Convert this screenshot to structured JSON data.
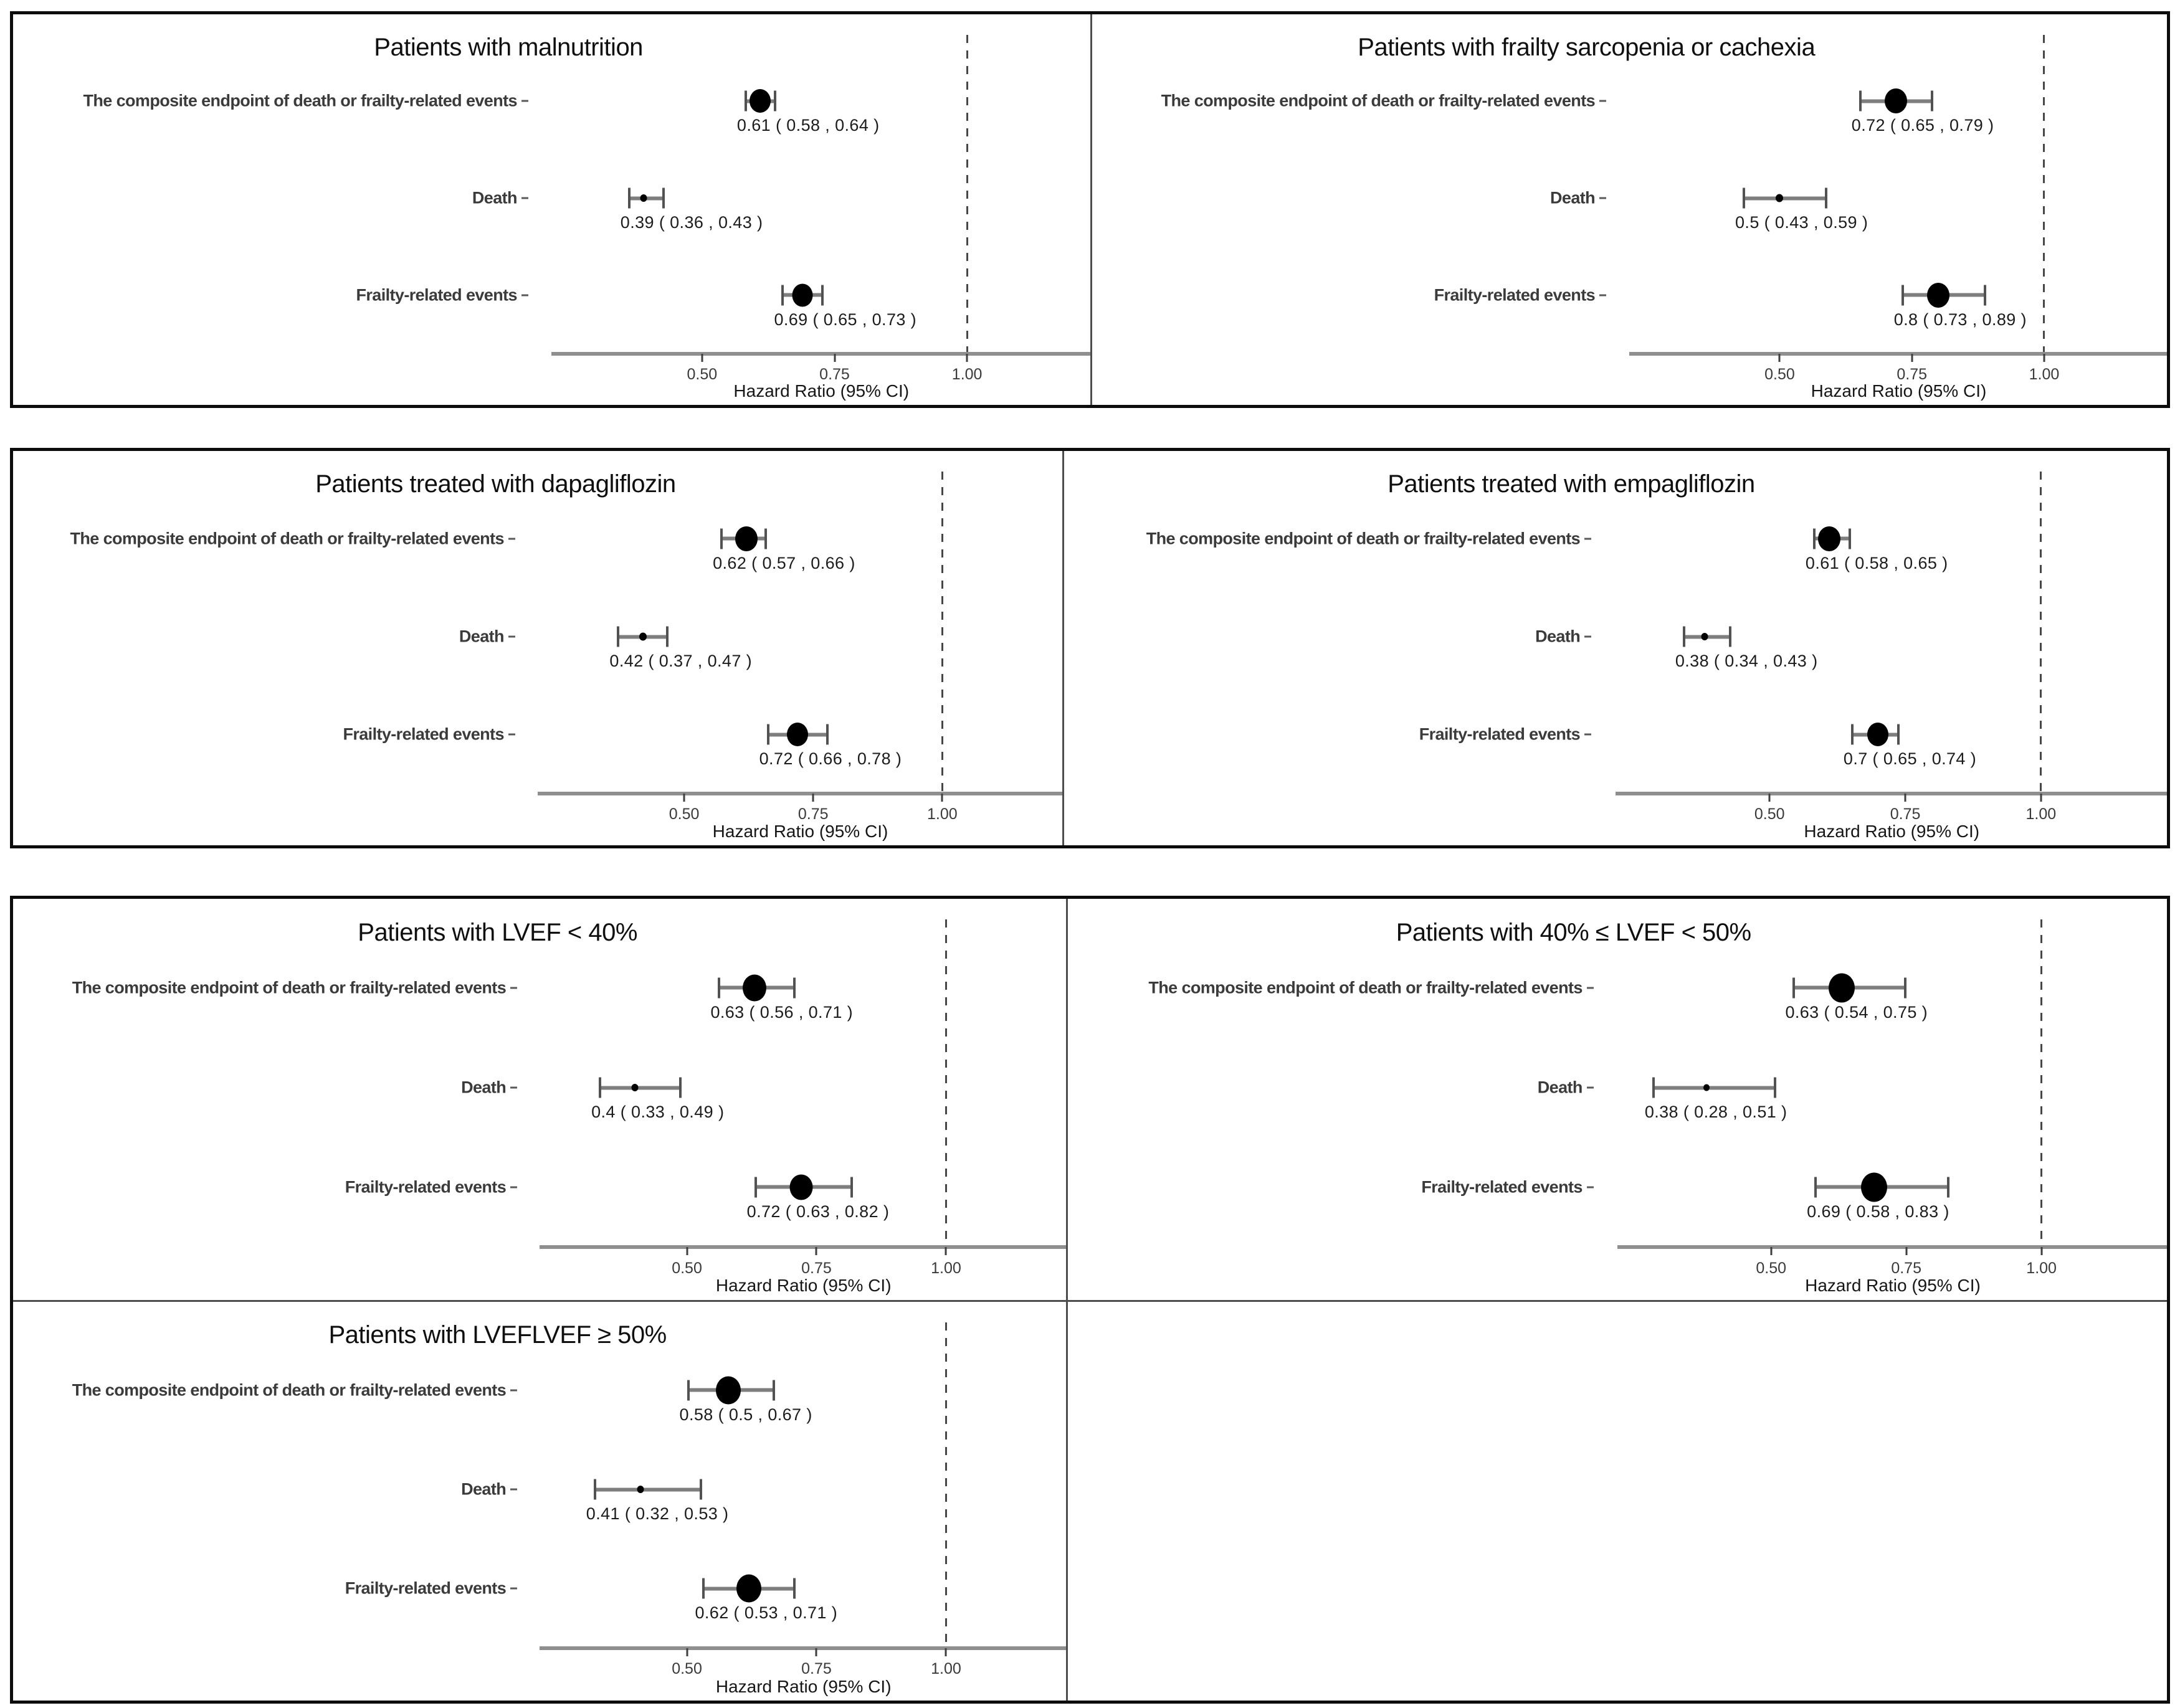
{
  "chart_data": {
    "type": "forest",
    "xlabel": "Hazard Ratio (95% CI)",
    "x_range": [
      0.22,
      1.23
    ],
    "x_ticks": [
      0.5,
      0.75,
      1.0
    ],
    "x_tick_labels": [
      "0.50",
      "0.75",
      "1.00"
    ],
    "reference_line": 1.0,
    "grid": "off",
    "categories": [
      "The composite endpoint of death or frailty-related events",
      "Death",
      "Frailty-related events"
    ],
    "panels": [
      {
        "title": "Patients with malnutrition",
        "rows": [
          {
            "hr": 0.61,
            "low": 0.58,
            "high": 0.64,
            "ci_text": "0.61 ( 0.58 ,  0.64 )",
            "marker": 34
          },
          {
            "hr": 0.39,
            "low": 0.36,
            "high": 0.43,
            "ci_text": "0.39 ( 0.36 ,  0.43 )",
            "marker": 11
          },
          {
            "hr": 0.69,
            "low": 0.65,
            "high": 0.73,
            "ci_text": "0.69 ( 0.65 ,  0.73 )",
            "marker": 33
          }
        ]
      },
      {
        "title": "Patients with frailty sarcopenia or cachexia",
        "rows": [
          {
            "hr": 0.72,
            "low": 0.65,
            "high": 0.79,
            "ci_text": "0.72 ( 0.65 ,  0.79 )",
            "marker": 36
          },
          {
            "hr": 0.5,
            "low": 0.43,
            "high": 0.59,
            "ci_text": "0.5 ( 0.43 ,  0.59 )",
            "marker": 12
          },
          {
            "hr": 0.8,
            "low": 0.73,
            "high": 0.89,
            "ci_text": "0.8 ( 0.73 ,  0.89 )",
            "marker": 36
          }
        ]
      },
      {
        "title": "Patients treated with dapagliflozin",
        "rows": [
          {
            "hr": 0.62,
            "low": 0.57,
            "high": 0.66,
            "ci_text": "0.62 ( 0.57 ,  0.66 )",
            "marker": 36
          },
          {
            "hr": 0.42,
            "low": 0.37,
            "high": 0.47,
            "ci_text": "0.42 ( 0.37 ,  0.47 )",
            "marker": 12
          },
          {
            "hr": 0.72,
            "low": 0.66,
            "high": 0.78,
            "ci_text": "0.72 ( 0.66 ,  0.78 )",
            "marker": 34
          }
        ]
      },
      {
        "title": "Patients treated with empagliflozin",
        "rows": [
          {
            "hr": 0.61,
            "low": 0.58,
            "high": 0.65,
            "ci_text": "0.61 ( 0.58 ,  0.65 )",
            "marker": 36
          },
          {
            "hr": 0.38,
            "low": 0.34,
            "high": 0.43,
            "ci_text": "0.38 ( 0.34 ,  0.43 )",
            "marker": 11
          },
          {
            "hr": 0.7,
            "low": 0.65,
            "high": 0.74,
            "ci_text": "0.7 ( 0.65 ,  0.74 )",
            "marker": 34
          }
        ]
      },
      {
        "title": "Patients with LVEF < 40%",
        "rows": [
          {
            "hr": 0.63,
            "low": 0.56,
            "high": 0.71,
            "ci_text": "0.63 ( 0.56 ,  0.71 )",
            "marker": 38
          },
          {
            "hr": 0.4,
            "low": 0.33,
            "high": 0.49,
            "ci_text": "0.4 ( 0.33 ,  0.49 )",
            "marker": 11
          },
          {
            "hr": 0.72,
            "low": 0.63,
            "high": 0.82,
            "ci_text": "0.72 ( 0.63 ,  0.82 )",
            "marker": 37
          }
        ]
      },
      {
        "title": "Patients with 40% ≤ LVEF < 50%",
        "rows": [
          {
            "hr": 0.63,
            "low": 0.54,
            "high": 0.75,
            "ci_text": "0.63 ( 0.54 ,  0.75 )",
            "marker": 42
          },
          {
            "hr": 0.38,
            "low": 0.28,
            "high": 0.51,
            "ci_text": "0.38 ( 0.28 ,  0.51 )",
            "marker": 10
          },
          {
            "hr": 0.69,
            "low": 0.58,
            "high": 0.83,
            "ci_text": "0.69 ( 0.58 ,  0.83 )",
            "marker": 42
          }
        ]
      },
      {
        "title": "Patients with LVEFLVEF ≥ 50%",
        "rows": [
          {
            "hr": 0.58,
            "low": 0.5,
            "high": 0.67,
            "ci_text": "0.58 ( 0.5 ,  0.67 )",
            "marker": 40
          },
          {
            "hr": 0.41,
            "low": 0.32,
            "high": 0.53,
            "ci_text": "0.41 ( 0.32 ,  0.53 )",
            "marker": 11
          },
          {
            "hr": 0.62,
            "low": 0.53,
            "high": 0.71,
            "ci_text": "0.62 ( 0.53 ,  0.71 )",
            "marker": 40
          }
        ]
      }
    ]
  }
}
